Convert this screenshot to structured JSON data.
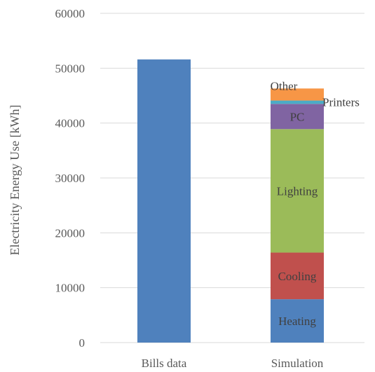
{
  "chart_data": {
    "type": "bar",
    "stacked": true,
    "categories": [
      "Bills data",
      "Simulation"
    ],
    "ylabel": "Electricity Energy Use [kWh]",
    "xlabel": "",
    "title": "",
    "ylim": [
      0,
      60000
    ],
    "yticks": [
      0,
      10000,
      20000,
      30000,
      40000,
      50000,
      60000
    ],
    "grid": true,
    "legend": "none",
    "bars": [
      {
        "category": "Bills data",
        "segments": [
          {
            "label": "",
            "value": 51600,
            "color": "#4f81bd"
          }
        ]
      },
      {
        "category": "Simulation",
        "segments": [
          {
            "label": "Heating",
            "value": 7900,
            "color": "#4f81bd"
          },
          {
            "label": "Cooling",
            "value": 8500,
            "color": "#c0504d"
          },
          {
            "label": "Lighting",
            "value": 22500,
            "color": "#9bbb59"
          },
          {
            "label": "PC",
            "value": 4600,
            "color": "#8064a2"
          },
          {
            "label": "Printers",
            "value": 600,
            "color": "#4bacc6"
          },
          {
            "label": "Other",
            "value": 2200,
            "color": "#f79646"
          }
        ]
      }
    ]
  }
}
